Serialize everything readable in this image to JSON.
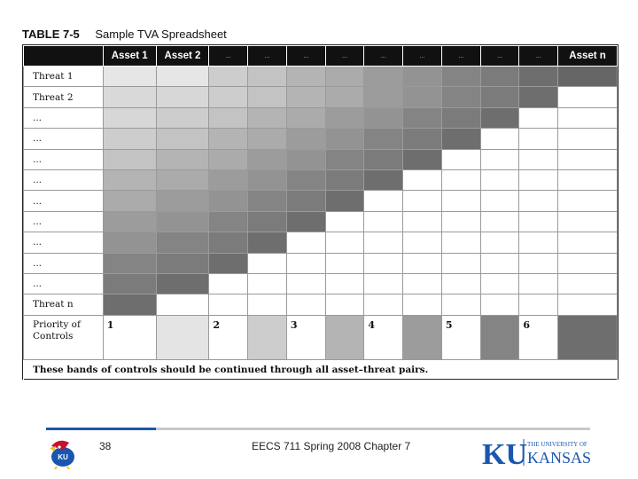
{
  "caption": {
    "table_number": "TABLE 7-5",
    "title": "Sample TVA Spreadsheet"
  },
  "header": [
    "Asset 1",
    "Asset 2",
    "...",
    "...",
    "...",
    "...",
    "...",
    "...",
    "...",
    "...",
    "...",
    "Asset n"
  ],
  "row_labels": [
    "Threat 1",
    "Threat 2",
    "...",
    "...",
    "...",
    "...",
    "...",
    "...",
    "...",
    "...",
    "...",
    "Threat n"
  ],
  "priority_label": "Priority of Controls",
  "priority_bands": [
    "1",
    "2",
    "3",
    "4",
    "5",
    "6"
  ],
  "note": "These bands of controls should be continued through all asset–threat pairs.",
  "footer": {
    "page_number": "38",
    "course": "EECS 711 Spring 2008 Chapter 7"
  },
  "logo": {
    "top": "THE UNIVERSITY OF",
    "initials": "KU",
    "name": "KANSAS"
  },
  "mascot_text": "KU",
  "colors": {
    "header_bg": "#111111",
    "band_shades": [
      "#e4e4e4",
      "#cdcdcd",
      "#b4b4b4",
      "#9c9c9c",
      "#848484",
      "#6e6e6e"
    ],
    "ku_blue": "#1a56b0",
    "ku_red": "#c8102e"
  }
}
